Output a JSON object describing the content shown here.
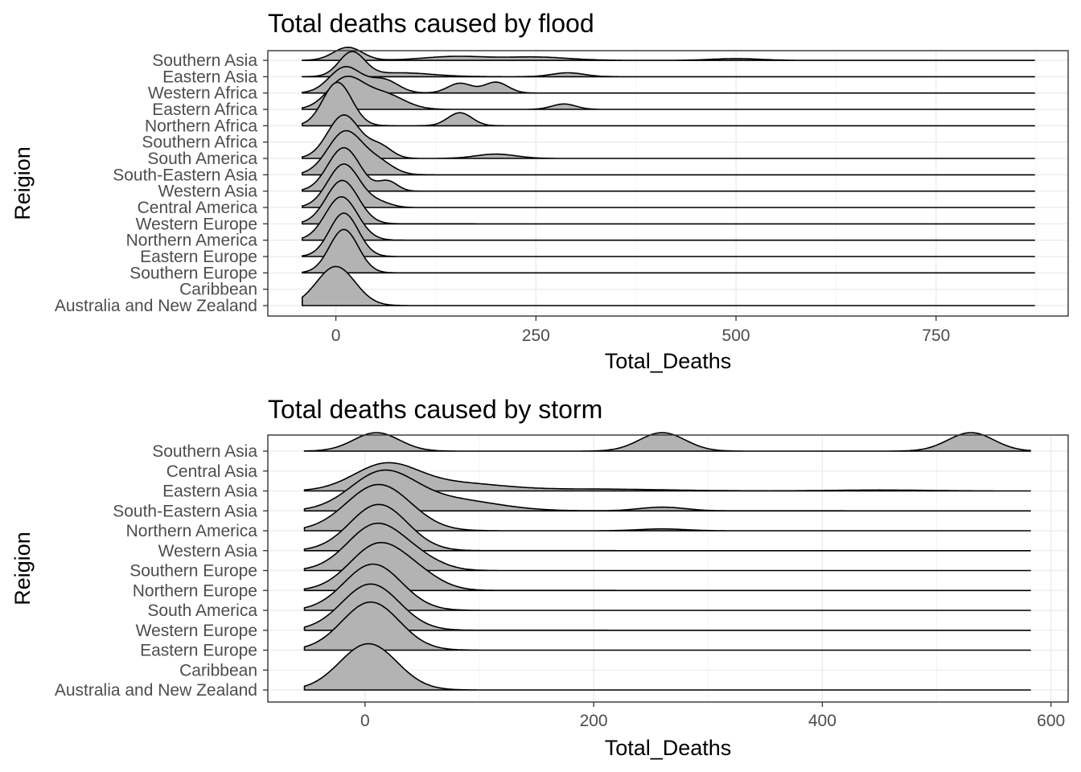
{
  "chart_data": [
    {
      "type": "ridgeline",
      "title": "Total deaths caused by flood",
      "xlabel": "Total_Deaths",
      "ylabel": "Reigion",
      "xlim": [
        -85,
        915
      ],
      "xticks": [
        0,
        250,
        500,
        750
      ],
      "x_range": [
        -42,
        873
      ],
      "fill_color": "#b3b3b3",
      "line_color": "#000000",
      "grid": true,
      "categories": [
        "Australia and New Zealand",
        "Caribbean",
        "Southern Europe",
        "Eastern Europe",
        "Northern America",
        "Western Europe",
        "Central America",
        "Western Asia",
        "South-Eastern Asia",
        "South America",
        "Southern Africa",
        "Northern Africa",
        "Eastern Africa",
        "Western Africa",
        "Eastern Asia",
        "Southern Asia"
      ],
      "series": [
        {
          "name": "Australia and New Zealand",
          "peaks": [
            [
              0,
              24,
              1.8
            ]
          ]
        },
        {
          "name": "Caribbean",
          "peaks": []
        },
        {
          "name": "Southern Europe",
          "peaks": [
            [
              10,
              18,
              2.0
            ]
          ]
        },
        {
          "name": "Eastern Europe",
          "peaks": [
            [
              10,
              18,
              2.0
            ]
          ]
        },
        {
          "name": "Northern America",
          "peaks": [
            [
              7,
              20,
              2.0
            ]
          ]
        },
        {
          "name": "Western Europe",
          "peaks": [
            [
              8,
              20,
              2.0
            ]
          ]
        },
        {
          "name": "Central America",
          "peaks": [
            [
              10,
              20,
              2.0
            ],
            [
              55,
              15,
              0.2
            ]
          ]
        },
        {
          "name": "Western Asia",
          "peaks": [
            [
              10,
              20,
              2.0
            ],
            [
              65,
              12,
              0.45
            ]
          ]
        },
        {
          "name": "South-Eastern Asia",
          "peaks": [
            [
              12,
              22,
              2.0
            ],
            [
              55,
              18,
              0.5
            ]
          ]
        },
        {
          "name": "South America",
          "peaks": [
            [
              10,
              20,
              2.0
            ],
            [
              55,
              15,
              0.55
            ],
            [
              200,
              25,
              0.2
            ]
          ]
        },
        {
          "name": "Southern Africa",
          "peaks": []
        },
        {
          "name": "Northern Africa",
          "peaks": [
            [
              2,
              18,
              2.0
            ],
            [
              155,
              15,
              0.6
            ]
          ]
        },
        {
          "name": "Eastern Africa",
          "peaks": [
            [
              12,
              22,
              1.4
            ],
            [
              60,
              25,
              0.7
            ],
            [
              285,
              15,
              0.25
            ]
          ]
        },
        {
          "name": "Western Africa",
          "peaks": [
            [
              12,
              20,
              1.2
            ],
            [
              60,
              18,
              0.6
            ],
            [
              155,
              15,
              0.45
            ],
            [
              200,
              15,
              0.5
            ]
          ]
        },
        {
          "name": "Eastern Asia",
          "peaks": [
            [
              20,
              16,
              1.1
            ],
            [
              80,
              40,
              0.18
            ],
            [
              290,
              20,
              0.18
            ]
          ]
        },
        {
          "name": "Southern Asia",
          "peaks": [
            [
              15,
              18,
              0.6
            ],
            [
              150,
              40,
              0.18
            ],
            [
              250,
              40,
              0.15
            ],
            [
              500,
              30,
              0.08
            ]
          ]
        }
      ]
    },
    {
      "type": "ridgeline",
      "title": "Total deaths caused by storm",
      "xlabel": "Total_Deaths",
      "ylabel": "Reigion",
      "xlim": [
        -85,
        615
      ],
      "xticks": [
        0,
        200,
        400,
        600
      ],
      "x_range": [
        -53,
        582
      ],
      "fill_color": "#b3b3b3",
      "line_color": "#000000",
      "grid": true,
      "categories": [
        "Australia and New Zealand",
        "Caribbean",
        "Eastern Europe",
        "Western Europe",
        "South America",
        "Northern Europe",
        "Southern Europe",
        "Western Asia",
        "Northern America",
        "South-Eastern Asia",
        "Eastern Asia",
        "Central Asia",
        "Southern Asia"
      ],
      "series": [
        {
          "name": "Australia and New Zealand",
          "peaks": [
            [
              3,
              25,
              2.5
            ]
          ]
        },
        {
          "name": "Caribbean",
          "peaks": []
        },
        {
          "name": "Eastern Europe",
          "peaks": [
            [
              5,
              25,
              2.6
            ]
          ]
        },
        {
          "name": "Western Europe",
          "peaks": [
            [
              5,
              25,
              2.5
            ]
          ]
        },
        {
          "name": "South America",
          "peaks": [
            [
              7,
              25,
              2.5
            ]
          ]
        },
        {
          "name": "Northern Europe",
          "peaks": [
            [
              12,
              25,
              2.5
            ],
            [
              50,
              20,
              0.5
            ]
          ]
        },
        {
          "name": "Southern Europe",
          "peaks": [
            [
              10,
              25,
              2.5
            ],
            [
              50,
              20,
              0.4
            ]
          ]
        },
        {
          "name": "Western Asia",
          "peaks": [
            [
              12,
              25,
              2.5
            ]
          ]
        },
        {
          "name": "Northern America",
          "peaks": [
            [
              12,
              28,
              2.5
            ],
            [
              260,
              20,
              0.1
            ]
          ]
        },
        {
          "name": "South-Eastern Asia",
          "peaks": [
            [
              15,
              28,
              2.0
            ],
            [
              75,
              40,
              0.6
            ],
            [
              260,
              20,
              0.2
            ]
          ]
        },
        {
          "name": "Eastern Asia",
          "peaks": [
            [
              18,
              28,
              1.4
            ],
            [
              80,
              40,
              0.4
            ],
            [
              200,
              60,
              0.1
            ],
            [
              450,
              40,
              0.05
            ]
          ]
        },
        {
          "name": "Central Asia",
          "peaks": []
        },
        {
          "name": "Southern Asia",
          "peaks": [
            [
              10,
              20,
              1.0
            ],
            [
              260,
              20,
              1.0
            ],
            [
              530,
              20,
              1.0
            ]
          ]
        }
      ]
    }
  ]
}
